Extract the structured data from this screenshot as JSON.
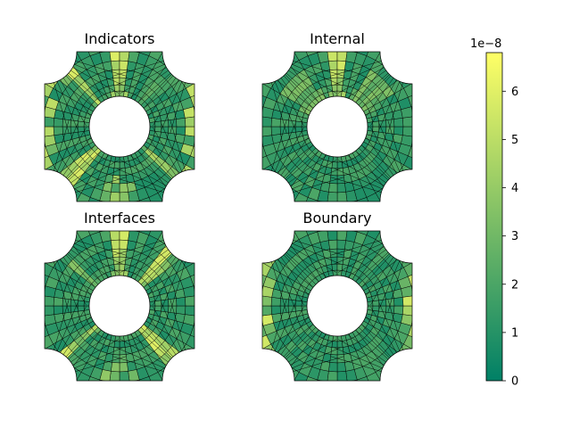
{
  "chart_data": {
    "type": "heatmap",
    "panels": [
      {
        "title": "Indicators",
        "hotspots": [
          "lr-edges",
          "center-diagonals",
          "top-spike",
          "bottom-spike"
        ]
      },
      {
        "title": "Internal",
        "hotspots": [
          "top-spike",
          "diagonal-mid"
        ]
      },
      {
        "title": "Interfaces",
        "hotspots": [
          "center-diagonals",
          "top-spike",
          "bottom-spike"
        ]
      },
      {
        "title": "Boundary",
        "hotspots": [
          "lr-edges"
        ]
      }
    ],
    "colorbar": {
      "colormap": "summer",
      "min": 0,
      "max": 6.8,
      "ticks": [
        "0",
        "1",
        "2",
        "3",
        "4",
        "5",
        "6"
      ],
      "tick_values": [
        0,
        1,
        2,
        3,
        4,
        5,
        6
      ],
      "offset_label": "1e−8"
    },
    "colors": {
      "low": "#008066",
      "high": "#ffff66",
      "mesh_lines": "#000000"
    }
  }
}
